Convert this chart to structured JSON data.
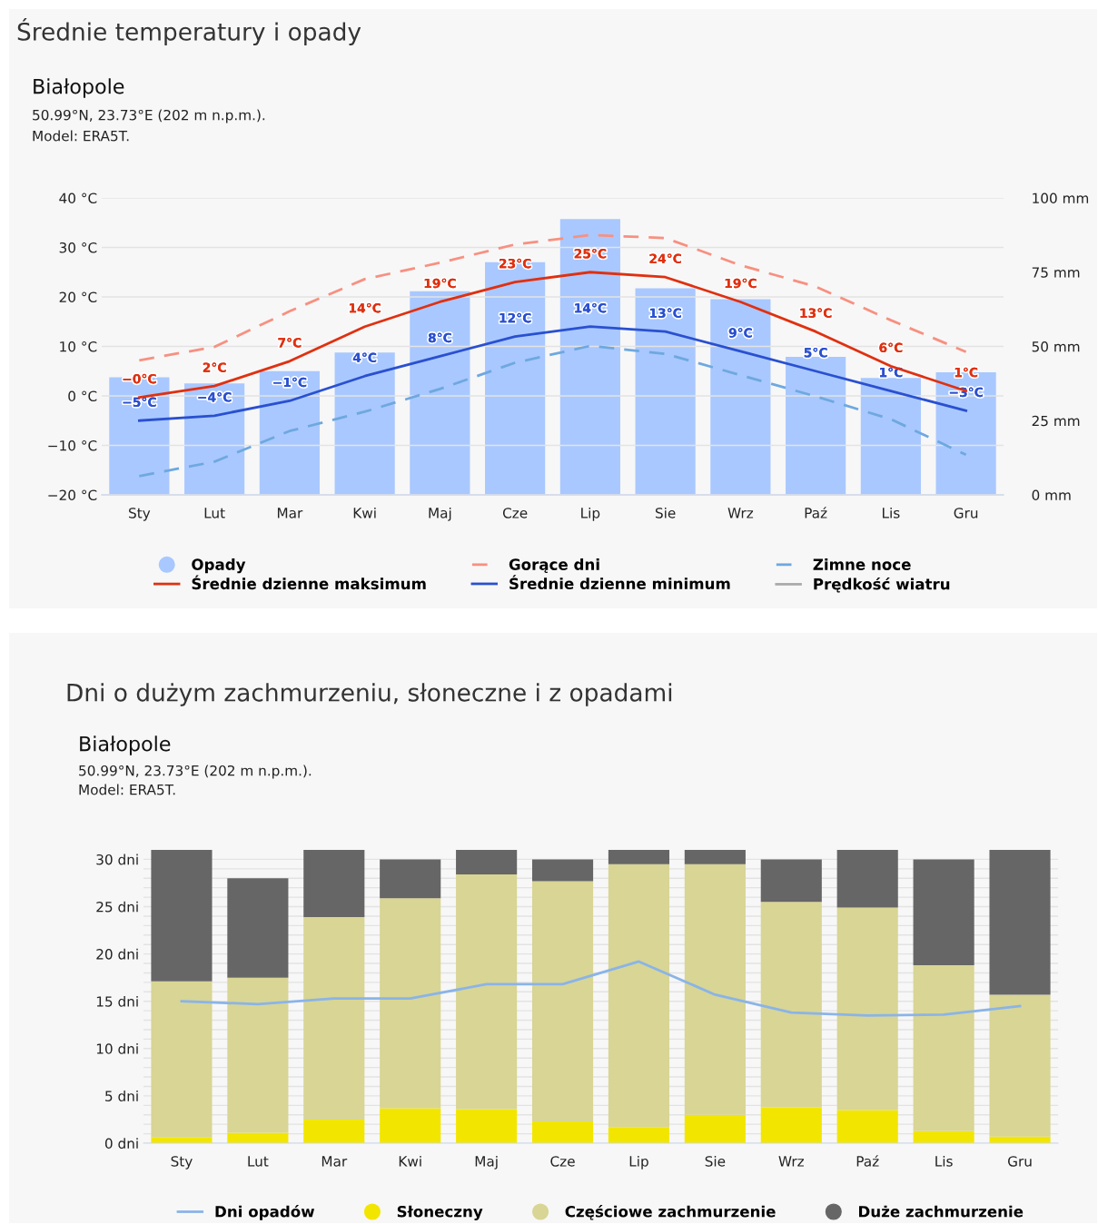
{
  "chart_data": [
    {
      "type": "line",
      "title": "Średnie temperatury i opady",
      "subtitle": "Białopole",
      "annotations": [
        "50.99°N, 23.73°E (202 m n.p.m.).",
        "Model: ERA5T."
      ],
      "categories": [
        "Sty",
        "Lut",
        "Mar",
        "Kwi",
        "Maj",
        "Cze",
        "Lip",
        "Sie",
        "Wrz",
        "Paź",
        "Lis",
        "Gru"
      ],
      "series": [
        {
          "name": "Opady",
          "type": "bar",
          "axis": "y2",
          "color": "#a9c8ff",
          "values": [
            39.6,
            37.5,
            41.7,
            47.9,
            68.6,
            78.4,
            92.9,
            69.6,
            65.9,
            46.5,
            39.4,
            41.3
          ]
        },
        {
          "name": "Średnie dzienne maksimum",
          "color": "#e03010",
          "line_style": "solid",
          "values": [
            -0.3,
            2,
            7,
            14,
            19,
            23,
            25,
            24,
            19,
            13,
            6,
            1
          ],
          "value_labels": [
            "−0°C",
            "2°C",
            "7°C",
            "14°C",
            "19°C",
            "23°C",
            "25°C",
            "24°C",
            "19°C",
            "13°C",
            "6°C",
            "1°C"
          ]
        },
        {
          "name": "Gorące dni",
          "color": "#f89080",
          "line_style": "dashed",
          "values": [
            7.2,
            9.9,
            17.1,
            23.6,
            26.9,
            30.6,
            32.5,
            31.9,
            26.4,
            22.1,
            15.3,
            8.9
          ]
        },
        {
          "name": "Średnie dzienne minimum",
          "color": "#2a50d0",
          "line_style": "solid",
          "values": [
            -5,
            -4,
            -1,
            4,
            8,
            12,
            14,
            13,
            9,
            5,
            1,
            -3
          ],
          "value_labels": [
            "−5°C",
            "−4°C",
            "−1°C",
            "4°C",
            "8°C",
            "12°C",
            "14°C",
            "13°C",
            "9°C",
            "5°C",
            "1°C",
            "−3°C"
          ]
        },
        {
          "name": "Zimne noce",
          "color": "#6ea8e0",
          "line_style": "dashed",
          "values": [
            -16.2,
            -13.3,
            -7.1,
            -3.2,
            1.4,
            6.7,
            10.1,
            8.5,
            4.2,
            -0.1,
            -4.7,
            -11.9
          ]
        },
        {
          "name": "Prędkość wiatru",
          "color": "#aaaaaa",
          "line_style": "solid",
          "values": [
            null,
            null,
            null,
            null,
            null,
            null,
            null,
            null,
            null,
            null,
            null,
            null
          ]
        }
      ],
      "ylim": [
        -20,
        40
      ],
      "yticks": [
        {
          "value": -20,
          "label": "−20 °C"
        },
        {
          "value": -10,
          "label": "−10 °C"
        },
        {
          "value": 0,
          "label": "0 °C"
        },
        {
          "value": 10,
          "label": "10 °C"
        },
        {
          "value": 20,
          "label": "20 °C"
        },
        {
          "value": 30,
          "label": "30 °C"
        },
        {
          "value": 40,
          "label": "40 °C"
        }
      ],
      "y2lim": [
        0,
        100
      ],
      "y2ticks": [
        {
          "value": 0,
          "label": "0 mm"
        },
        {
          "value": 25,
          "label": "25 mm"
        },
        {
          "value": 50,
          "label": "50 mm"
        },
        {
          "value": 75,
          "label": "75 mm"
        },
        {
          "value": 100,
          "label": "100 mm"
        }
      ],
      "grid": "y",
      "legend": "bottom"
    },
    {
      "type": "bar",
      "stacked": true,
      "title": "Dni o dużym zachmurzeniu, słoneczne i z opadami",
      "subtitle": "Białopole",
      "annotations": [
        "50.99°N, 23.73°E (202 m n.p.m.).",
        "Model: ERA5T."
      ],
      "categories": [
        "Sty",
        "Lut",
        "Mar",
        "Kwi",
        "Maj",
        "Cze",
        "Lip",
        "Sie",
        "Wrz",
        "Paź",
        "Lis",
        "Gru"
      ],
      "series": [
        {
          "name": "Dni opadów",
          "type": "line",
          "color": "#8ab4e8",
          "values": [
            15.0,
            14.7,
            15.3,
            15.3,
            16.8,
            16.8,
            19.2,
            15.7,
            13.8,
            13.5,
            13.6,
            14.5
          ]
        },
        {
          "name": "Słoneczny",
          "color": "#f2e600",
          "values": [
            0.6,
            1.1,
            2.5,
            3.7,
            3.6,
            2.3,
            1.7,
            3.0,
            3.8,
            3.5,
            1.3,
            0.7
          ]
        },
        {
          "name": "Częściowe zachmurzenie",
          "color": "#d8d595",
          "values": [
            16.5,
            16.4,
            21.4,
            22.2,
            24.8,
            25.4,
            27.8,
            26.5,
            21.7,
            21.4,
            17.5,
            15.0
          ]
        },
        {
          "name": "Duże zachmurzenie",
          "color": "#666666",
          "values": [
            13.9,
            10.5,
            7.1,
            4.1,
            2.6,
            2.3,
            1.5,
            1.5,
            4.5,
            6.1,
            11.2,
            15.3
          ]
        }
      ],
      "ylim": [
        0,
        31
      ],
      "yticks": [
        {
          "value": 0,
          "label": "0 dni"
        },
        {
          "value": 1,
          "label": null
        },
        {
          "value": 2,
          "label": null
        },
        {
          "value": 3,
          "label": null
        },
        {
          "value": 4,
          "label": null
        },
        {
          "value": 5,
          "label": "5 dni"
        },
        {
          "value": 6,
          "label": null
        },
        {
          "value": 7,
          "label": null
        },
        {
          "value": 8,
          "label": null
        },
        {
          "value": 9,
          "label": null
        },
        {
          "value": 10,
          "label": "10 dni"
        },
        {
          "value": 11,
          "label": null
        },
        {
          "value": 12,
          "label": null
        },
        {
          "value": 13,
          "label": null
        },
        {
          "value": 14,
          "label": null
        },
        {
          "value": 15,
          "label": "15 dni"
        },
        {
          "value": 16,
          "label": null
        },
        {
          "value": 17,
          "label": null
        },
        {
          "value": 18,
          "label": null
        },
        {
          "value": 19,
          "label": null
        },
        {
          "value": 20,
          "label": "20 dni"
        },
        {
          "value": 21,
          "label": null
        },
        {
          "value": 22,
          "label": null
        },
        {
          "value": 23,
          "label": null
        },
        {
          "value": 24,
          "label": null
        },
        {
          "value": 25,
          "label": "25 dni"
        },
        {
          "value": 26,
          "label": null
        },
        {
          "value": 27,
          "label": null
        },
        {
          "value": 28,
          "label": null
        },
        {
          "value": 29,
          "label": null
        },
        {
          "value": 30,
          "label": "30 dni"
        }
      ],
      "grid": "y",
      "legend": "bottom"
    }
  ]
}
